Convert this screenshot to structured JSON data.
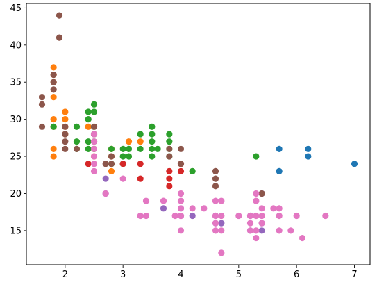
{
  "chart_data": {
    "type": "scatter",
    "title": "",
    "xlabel": "",
    "ylabel": "",
    "xlim": [
      1.33,
      7.27
    ],
    "ylim": [
      10.4,
      45.6
    ],
    "grid": false,
    "legend": "none",
    "x_ticks": [
      2,
      3,
      4,
      5,
      6,
      7
    ],
    "y_ticks": [
      15,
      20,
      25,
      30,
      35,
      40,
      45
    ],
    "x_tick_labels": [
      "2",
      "3",
      "4",
      "5",
      "6",
      "7"
    ],
    "y_tick_labels": [
      "15",
      "20",
      "25",
      "30",
      "35",
      "40",
      "45"
    ],
    "series": [
      {
        "color": "#1f77b4",
        "points": [
          [
            5.7,
            26
          ],
          [
            6.2,
            26
          ],
          [
            6.2,
            25
          ],
          [
            5.7,
            23
          ],
          [
            7.0,
            24
          ]
        ]
      },
      {
        "color": "#ff7f0e",
        "points": [
          [
            1.8,
            37
          ],
          [
            1.8,
            36
          ],
          [
            1.8,
            35
          ],
          [
            1.8,
            33
          ],
          [
            1.8,
            30
          ],
          [
            1.8,
            29
          ],
          [
            1.8,
            26
          ],
          [
            1.8,
            25
          ],
          [
            2.0,
            31
          ],
          [
            2.0,
            30
          ],
          [
            2.0,
            29
          ],
          [
            2.0,
            28
          ],
          [
            2.4,
            29
          ],
          [
            2.5,
            26
          ],
          [
            2.5,
            25
          ],
          [
            2.8,
            26
          ],
          [
            2.8,
            25
          ],
          [
            2.8,
            23
          ],
          [
            3.1,
            27
          ],
          [
            3.3,
            27
          ]
        ]
      },
      {
        "color": "#2ca02c",
        "points": [
          [
            1.8,
            29
          ],
          [
            2.2,
            29
          ],
          [
            2.2,
            27
          ],
          [
            2.2,
            26
          ],
          [
            2.4,
            31
          ],
          [
            2.4,
            30
          ],
          [
            2.4,
            27
          ],
          [
            2.4,
            26
          ],
          [
            2.5,
            32
          ],
          [
            2.5,
            31
          ],
          [
            2.5,
            29
          ],
          [
            2.5,
            28
          ],
          [
            2.5,
            27
          ],
          [
            2.5,
            26
          ],
          [
            2.8,
            26
          ],
          [
            2.8,
            24
          ],
          [
            3.0,
            26
          ],
          [
            3.0,
            25
          ],
          [
            3.0,
            24
          ],
          [
            3.1,
            26
          ],
          [
            3.1,
            25
          ],
          [
            3.3,
            28
          ],
          [
            3.3,
            26
          ],
          [
            3.5,
            29
          ],
          [
            3.5,
            28
          ],
          [
            3.5,
            27
          ],
          [
            3.5,
            26
          ],
          [
            3.5,
            25
          ],
          [
            3.6,
            26
          ],
          [
            3.8,
            28
          ],
          [
            3.8,
            27
          ],
          [
            3.8,
            26
          ],
          [
            3.8,
            25
          ],
          [
            4.2,
            23
          ],
          [
            5.3,
            25
          ]
        ]
      },
      {
        "color": "#d62728",
        "points": [
          [
            2.4,
            24
          ],
          [
            3.0,
            24
          ],
          [
            3.3,
            24
          ],
          [
            3.3,
            22
          ],
          [
            3.8,
            23
          ],
          [
            3.8,
            22
          ],
          [
            3.8,
            21
          ],
          [
            4.0,
            23
          ],
          [
            4.0,
            24
          ]
        ]
      },
      {
        "color": "#9467bd",
        "points": [
          [
            2.7,
            22
          ],
          [
            2.7,
            20
          ],
          [
            3.7,
            18
          ],
          [
            4.0,
            18
          ],
          [
            4.0,
            17
          ],
          [
            4.2,
            17
          ],
          [
            4.6,
            16
          ],
          [
            4.6,
            17
          ],
          [
            4.7,
            16
          ],
          [
            5.2,
            15
          ],
          [
            5.2,
            17
          ],
          [
            5.4,
            15
          ],
          [
            5.4,
            16
          ],
          [
            5.4,
            20
          ]
        ]
      },
      {
        "color": "#8c564b",
        "points": [
          [
            1.6,
            33
          ],
          [
            1.6,
            32
          ],
          [
            1.6,
            29
          ],
          [
            1.8,
            36
          ],
          [
            1.8,
            35
          ],
          [
            1.8,
            34
          ],
          [
            1.9,
            44
          ],
          [
            1.9,
            41
          ],
          [
            2.0,
            29
          ],
          [
            2.0,
            28
          ],
          [
            2.0,
            27
          ],
          [
            2.0,
            26
          ],
          [
            2.2,
            26
          ],
          [
            2.5,
            29
          ],
          [
            2.5,
            28
          ],
          [
            2.7,
            24
          ],
          [
            2.8,
            25
          ],
          [
            2.8,
            24
          ],
          [
            3.8,
            26
          ],
          [
            3.8,
            25
          ],
          [
            4.0,
            26
          ],
          [
            4.0,
            24
          ],
          [
            4.6,
            23
          ],
          [
            4.6,
            22
          ],
          [
            4.6,
            21
          ],
          [
            5.4,
            20
          ]
        ]
      },
      {
        "color": "#e377c2",
        "points": [
          [
            2.5,
            28
          ],
          [
            2.5,
            27
          ],
          [
            2.5,
            26
          ],
          [
            2.5,
            25
          ],
          [
            2.5,
            24
          ],
          [
            2.5,
            23
          ],
          [
            2.7,
            20
          ],
          [
            3.0,
            22
          ],
          [
            3.3,
            17
          ],
          [
            3.4,
            17
          ],
          [
            3.4,
            19
          ],
          [
            3.7,
            19
          ],
          [
            3.9,
            17
          ],
          [
            4.0,
            20
          ],
          [
            4.0,
            19
          ],
          [
            4.0,
            18
          ],
          [
            4.0,
            17
          ],
          [
            4.0,
            15
          ],
          [
            4.2,
            18
          ],
          [
            4.4,
            18
          ],
          [
            4.6,
            19
          ],
          [
            4.6,
            17
          ],
          [
            4.6,
            16
          ],
          [
            4.6,
            15
          ],
          [
            4.7,
            19
          ],
          [
            4.7,
            17
          ],
          [
            4.7,
            15
          ],
          [
            4.7,
            12
          ],
          [
            5.0,
            17
          ],
          [
            5.2,
            17
          ],
          [
            5.2,
            16
          ],
          [
            5.2,
            15
          ],
          [
            5.3,
            20
          ],
          [
            5.3,
            19
          ],
          [
            5.3,
            17
          ],
          [
            5.3,
            15
          ],
          [
            5.3,
            14
          ],
          [
            5.4,
            18
          ],
          [
            5.4,
            17
          ],
          [
            5.4,
            16
          ],
          [
            5.6,
            18
          ],
          [
            5.7,
            18
          ],
          [
            5.7,
            17
          ],
          [
            5.7,
            15
          ],
          [
            5.9,
            15
          ],
          [
            6.0,
            17
          ],
          [
            6.1,
            14
          ],
          [
            6.5,
            17
          ]
        ]
      }
    ]
  }
}
